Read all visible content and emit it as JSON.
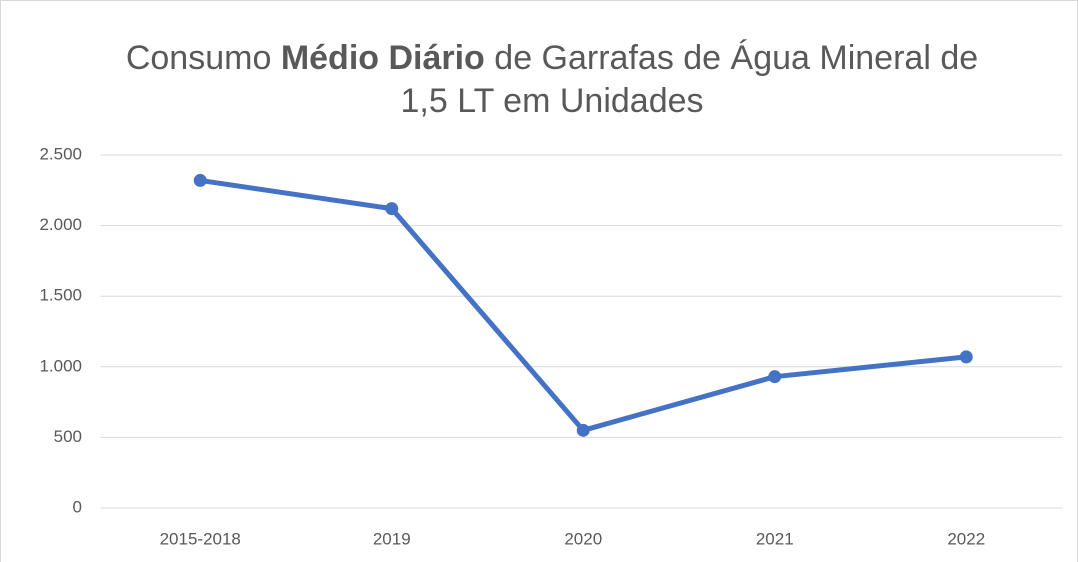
{
  "chart_data": {
    "type": "line",
    "title_lines": [
      [
        {
          "text": "Consumo"
        },
        {
          "text": "Médio Diário",
          "bold": true
        },
        {
          "text": "de Garrafas de Água Mineral de"
        }
      ],
      [
        {
          "text": "1,5 LT em Unidades"
        }
      ]
    ],
    "categories": [
      "2015-2018",
      "2019",
      "2020",
      "2021",
      "2022"
    ],
    "series": [
      {
        "color": "#4472c4",
        "values": [
          2320,
          2120,
          550,
          930,
          1070
        ]
      }
    ],
    "ylim": [
      0,
      2500
    ],
    "yticks": [
      0,
      500,
      {
        "value": 1000,
        "label": "1.000"
      },
      {
        "value": 1500,
        "label": "1.500"
      },
      {
        "value": 2000,
        "label": "2.000"
      },
      {
        "value": 2500,
        "label": "2.500"
      }
    ],
    "grid": true
  }
}
